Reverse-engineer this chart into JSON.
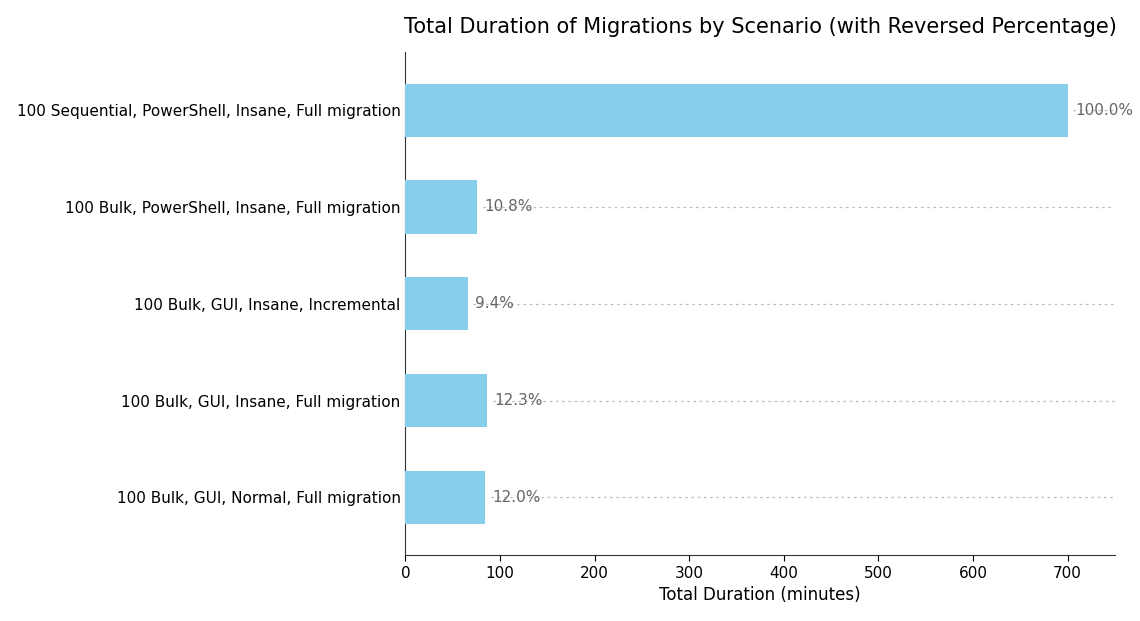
{
  "title": "Total Duration of Migrations by Scenario (with Reversed Percentage)",
  "xlabel": "Total Duration (minutes)",
  "categories": [
    "100 Bulk, GUI, Normal, Full migration",
    "100 Bulk, GUI, Insane, Full migration",
    "100 Bulk, GUI, Insane, Incremental",
    "100 Bulk, PowerShell, Insane, Full migration",
    "100 Sequential, PowerShell, Insane, Full migration"
  ],
  "values": [
    84.0,
    86.1,
    65.8,
    75.6,
    700.0
  ],
  "percentages": [
    "12.0%",
    "12.3%",
    "9.4%",
    "10.8%",
    "100.0%"
  ],
  "bar_color": "#87CEEB",
  "background_color": "#ffffff",
  "xlim": [
    0,
    750
  ],
  "xticks": [
    0,
    100,
    200,
    300,
    400,
    500,
    600,
    700
  ],
  "title_fontsize": 15,
  "label_fontsize": 12,
  "tick_fontsize": 11,
  "annotation_fontsize": 11,
  "annotation_color": "#666666",
  "dotted_line_color": "#bbbbbb",
  "bar_height": 0.55,
  "spine_color": "#333333"
}
